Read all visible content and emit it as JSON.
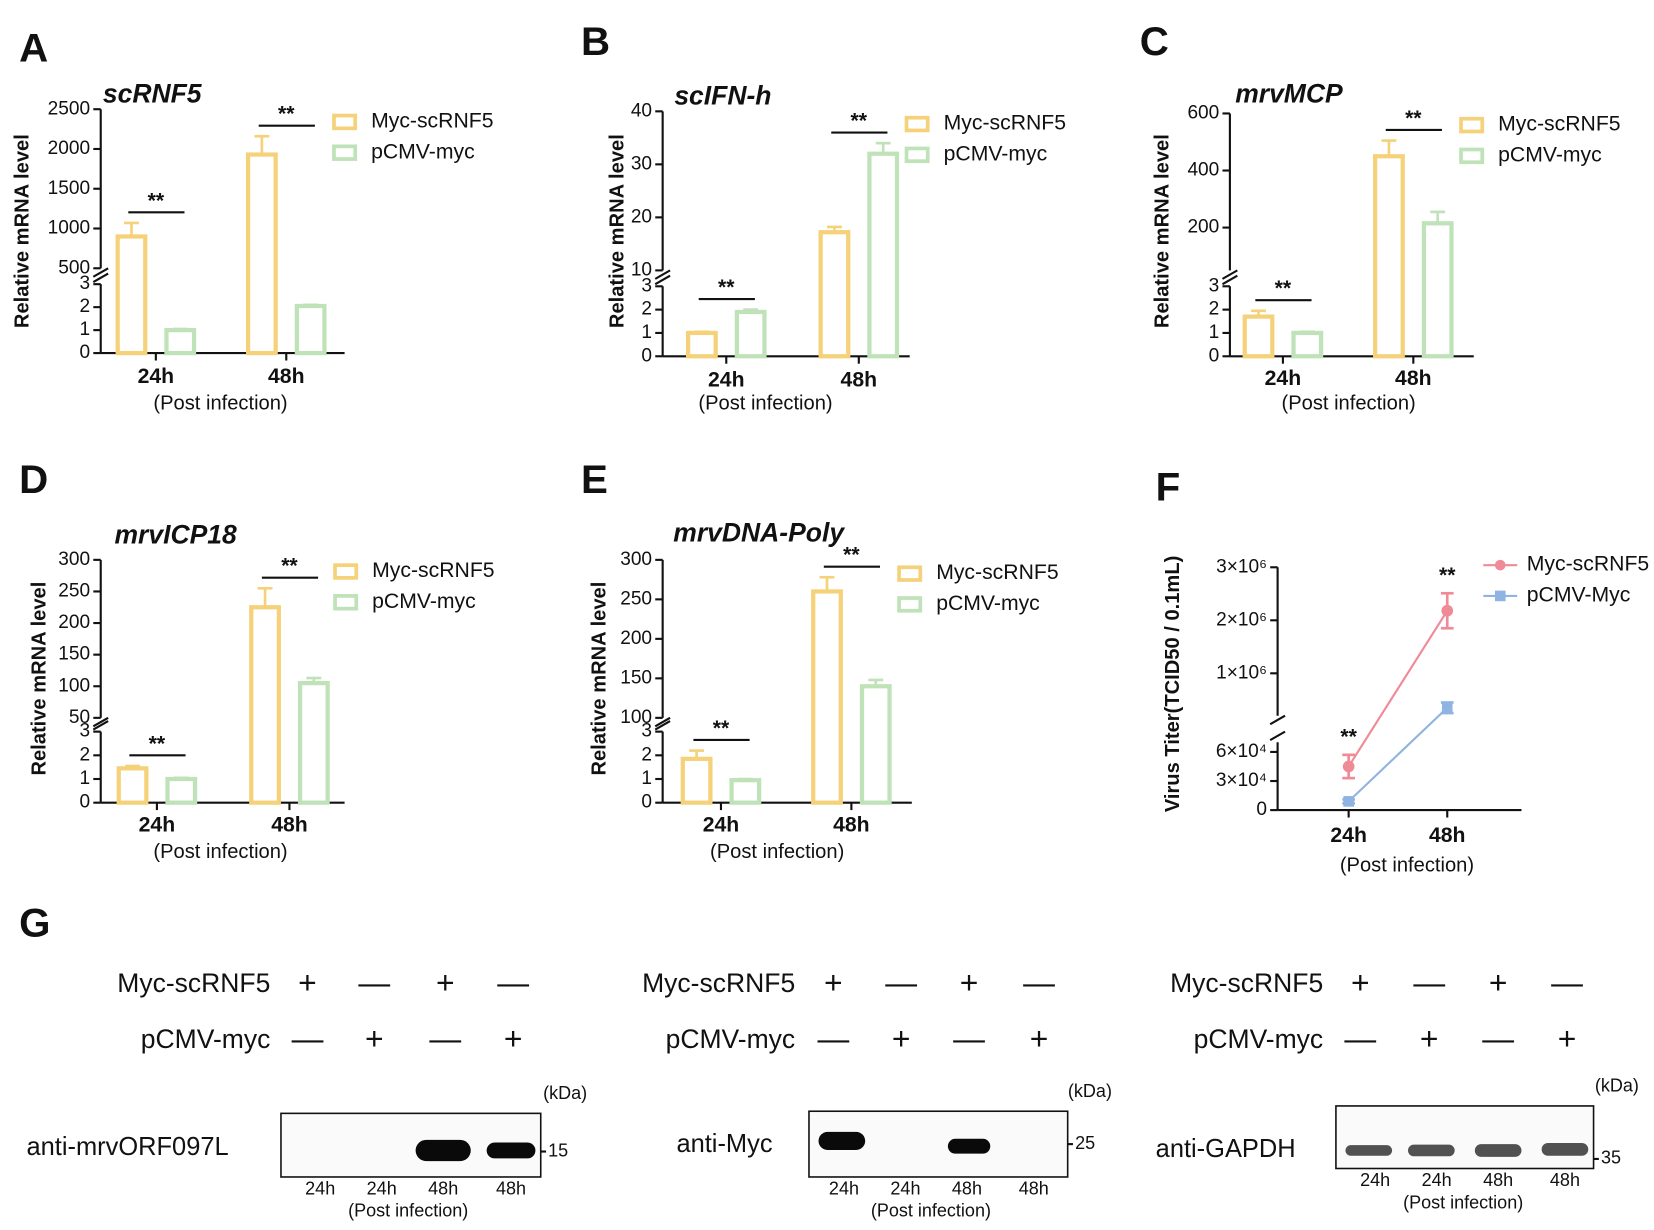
{
  "chart_data": [
    {
      "type": "bar",
      "label": "A",
      "title": "scRNF5",
      "ylabel": "Relative  mRNA level",
      "xlabel": "(Post infection)",
      "categories": [
        "24h",
        "48h"
      ],
      "y_segments": [
        {
          "ylim": [
            0,
            3
          ],
          "yticks": [
            0,
            1,
            2,
            3
          ]
        },
        {
          "ylim": [
            500,
            2500
          ],
          "yticks": [
            500,
            1000,
            1500,
            2000,
            2500
          ]
        }
      ],
      "series": [
        {
          "name": "Myc-scRNF5",
          "color": "#f5d27a",
          "values": [
            900,
            1930
          ],
          "errors": [
            170,
            230
          ]
        },
        {
          "name": "pCMV-myc",
          "color": "#bfe2b8",
          "values": [
            1.0,
            2.05
          ],
          "errors": [
            0.05,
            0.05
          ]
        }
      ],
      "annotations": [
        "**",
        "**"
      ]
    },
    {
      "type": "bar",
      "label": "B",
      "title": "scIFN-h",
      "ylabel": "Relative  mRNA level",
      "xlabel": "(Post infection)",
      "categories": [
        "24h",
        "48h"
      ],
      "y_segments": [
        {
          "ylim": [
            0,
            3
          ],
          "yticks": [
            0,
            1,
            2,
            3
          ]
        },
        {
          "ylim": [
            10,
            40
          ],
          "yticks": [
            10,
            20,
            30,
            40
          ]
        }
      ],
      "series": [
        {
          "name": "Myc-scRNF5",
          "color": "#f5d27a",
          "values": [
            1.0,
            17.2
          ],
          "errors": [
            0.05,
            1.0
          ]
        },
        {
          "name": "pCMV-myc",
          "color": "#bfe2b8",
          "values": [
            1.9,
            32
          ],
          "errors": [
            0.1,
            2.0
          ]
        }
      ],
      "annotations": [
        "**",
        "**"
      ]
    },
    {
      "type": "bar",
      "label": "C",
      "title": "mrvMCP",
      "ylabel": "Relative  mRNA level",
      "xlabel": "(Post infection)",
      "categories": [
        "24h",
        "48h"
      ],
      "y_segments": [
        {
          "ylim": [
            0,
            3
          ],
          "yticks": [
            0,
            1,
            2,
            3
          ]
        },
        {
          "ylim": [
            50,
            600
          ],
          "yticks": [
            200,
            400,
            600
          ]
        }
      ],
      "series": [
        {
          "name": "Myc-scRNF5",
          "color": "#f5d27a",
          "values": [
            1.7,
            450
          ],
          "errors": [
            0.25,
            55
          ]
        },
        {
          "name": "pCMV-myc",
          "color": "#bfe2b8",
          "values": [
            1.0,
            215
          ],
          "errors": [
            0.05,
            40
          ]
        }
      ],
      "annotations": [
        "**",
        "**"
      ]
    },
    {
      "type": "bar",
      "label": "D",
      "title": "mrvICP18",
      "ylabel": "Relative  mRNA level",
      "xlabel": "(Post infection)",
      "categories": [
        "24h",
        "48h"
      ],
      "y_segments": [
        {
          "ylim": [
            0,
            3
          ],
          "yticks": [
            0,
            1,
            2,
            3
          ]
        },
        {
          "ylim": [
            50,
            300
          ],
          "yticks": [
            50,
            100,
            150,
            200,
            250,
            300
          ]
        }
      ],
      "series": [
        {
          "name": "Myc-scRNF5",
          "color": "#f5d27a",
          "values": [
            1.45,
            225
          ],
          "errors": [
            0.1,
            30
          ]
        },
        {
          "name": "pCMV-myc",
          "color": "#bfe2b8",
          "values": [
            1.0,
            105
          ],
          "errors": [
            0.05,
            8
          ]
        }
      ],
      "annotations": [
        "**",
        "**"
      ]
    },
    {
      "type": "bar",
      "label": "E",
      "title": "mrvDNA-Poly",
      "ylabel": "Relative  mRNA level",
      "xlabel": "(Post infection)",
      "categories": [
        "24h",
        "48h"
      ],
      "y_segments": [
        {
          "ylim": [
            0,
            3
          ],
          "yticks": [
            0,
            1,
            2,
            3
          ]
        },
        {
          "ylim": [
            100,
            300
          ],
          "yticks": [
            100,
            150,
            200,
            250,
            300
          ]
        }
      ],
      "series": [
        {
          "name": "Myc-scRNF5",
          "color": "#f5d27a",
          "values": [
            1.85,
            260
          ],
          "errors": [
            0.35,
            18
          ]
        },
        {
          "name": "pCMV-myc",
          "color": "#bfe2b8",
          "values": [
            0.95,
            140
          ],
          "errors": [
            0.05,
            8
          ]
        }
      ],
      "annotations": [
        "**",
        "**"
      ]
    },
    {
      "type": "line",
      "label": "F",
      "ylabel": "Virus Titer(TCID50 / 0.1mL)",
      "xlabel": "(Post infection)",
      "categories": [
        "24h",
        "48h"
      ],
      "y_segments": [
        {
          "ylim": [
            0,
            70000
          ],
          "yticks": [
            0,
            {
              "value": 30000,
              "label": "3×10⁴"
            },
            {
              "value": 60000,
              "label": "6×10⁴"
            }
          ]
        },
        {
          "ylim": [
            200000,
            3000000
          ],
          "yticks": [
            {
              "value": 1000000,
              "label": "1×10⁶"
            },
            {
              "value": 2000000,
              "label": "2×10⁶"
            },
            {
              "value": 3000000,
              "label": "3×10⁶"
            }
          ]
        }
      ],
      "series": [
        {
          "name": "Myc-scRNF5",
          "color": "#f08a96",
          "values": [
            45000,
            2180000
          ],
          "errors": [
            12000,
            330000
          ]
        },
        {
          "name": "pCMV-Myc",
          "color": "#8fb4e3",
          "values": [
            9000,
            350000
          ],
          "errors": [
            2000,
            100000
          ]
        }
      ],
      "annotations": [
        "**",
        "**"
      ]
    }
  ],
  "blot_panel": {
    "label": "G",
    "blots": [
      {
        "rows": [
          {
            "name": "Myc-scRNF5",
            "signs": [
              "+",
              "—",
              "+",
              "—"
            ]
          },
          {
            "name": "pCMV-myc",
            "signs": [
              "—",
              "+",
              "—",
              "+"
            ]
          }
        ],
        "antibody": "anti-mrvORF097L",
        "unit": "(kDa)",
        "marker": "15",
        "lanes": [
          "24h",
          "24h",
          "48h",
          "48h"
        ],
        "xlabel": "(Post infection)"
      },
      {
        "rows": [
          {
            "name": "Myc-scRNF5",
            "signs": [
              "+",
              "—",
              "+",
              "—"
            ]
          },
          {
            "name": "pCMV-myc",
            "signs": [
              "—",
              "+",
              "—",
              "+"
            ]
          }
        ],
        "antibody": "anti-Myc",
        "unit": "(kDa)",
        "marker": "25",
        "lanes": [
          "24h",
          "24h",
          "48h",
          "48h"
        ],
        "xlabel": "(Post infection)"
      },
      {
        "rows": [
          {
            "name": "Myc-scRNF5",
            "signs": [
              "+",
              "—",
              "+",
              "—"
            ]
          },
          {
            "name": "pCMV-myc",
            "signs": [
              "—",
              "+",
              "—",
              "+"
            ]
          }
        ],
        "antibody": "anti-GAPDH",
        "unit": "(kDa)",
        "marker": "35",
        "lanes": [
          "24h",
          "24h",
          "48h",
          "48h"
        ],
        "xlabel": "(Post infection)"
      }
    ]
  }
}
